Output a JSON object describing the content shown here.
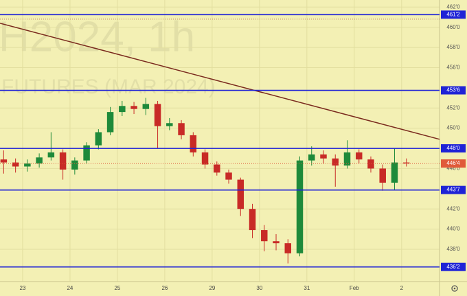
{
  "chart_data": {
    "type": "candlestick",
    "watermark_title": "H2024, 1h",
    "watermark_subtitle": "FUTURES (MAR 2024)",
    "background": "#f3f0b4",
    "up_color": "#1e8a3a",
    "down_color": "#c82a26",
    "ylim": [
      434.8,
      462.7
    ],
    "xlim": [
      -0.478,
      8.8
    ],
    "yticks": [
      {
        "value": 462,
        "label": "462'0"
      },
      {
        "value": 460,
        "label": "460'0"
      },
      {
        "value": 458,
        "label": "458'0"
      },
      {
        "value": 456,
        "label": "456'0"
      },
      {
        "value": 452,
        "label": "452'0"
      },
      {
        "value": 450,
        "label": "450'0"
      },
      {
        "value": 446,
        "label": "446'0"
      },
      {
        "value": 442,
        "label": "442'0"
      },
      {
        "value": 440,
        "label": "440'0"
      },
      {
        "value": 438,
        "label": "438'0"
      }
    ],
    "xticks": [
      {
        "value": 0,
        "label": "23"
      },
      {
        "value": 1,
        "label": "24"
      },
      {
        "value": 2,
        "label": "25"
      },
      {
        "value": 3,
        "label": "26"
      },
      {
        "value": 4,
        "label": "29"
      },
      {
        "value": 5,
        "label": "30"
      },
      {
        "value": 6,
        "label": "31"
      },
      {
        "value": 7,
        "label": "Feb"
      },
      {
        "value": 8,
        "label": "2"
      }
    ],
    "grid": true,
    "x": [
      -0.4,
      -0.15,
      0.1,
      0.35,
      0.6,
      0.85,
      1.1,
      1.35,
      1.6,
      1.85,
      2.1,
      2.35,
      2.6,
      2.85,
      3.1,
      3.35,
      3.6,
      3.85,
      4.1,
      4.35,
      4.6,
      4.85,
      5.1,
      5.35,
      5.6,
      5.85,
      6.1,
      6.35,
      6.6,
      6.85,
      7.1,
      7.35,
      7.6,
      7.85,
      8.1
    ],
    "candles": [
      [
        446.9,
        447.8,
        445.5,
        446.6
      ],
      [
        446.6,
        447.0,
        445.6,
        446.2
      ],
      [
        446.2,
        446.9,
        445.7,
        446.5
      ],
      [
        446.5,
        447.5,
        446.1,
        447.1
      ],
      [
        447.1,
        449.6,
        446.8,
        447.6
      ],
      [
        447.6,
        447.9,
        444.9,
        445.9
      ],
      [
        445.9,
        447.1,
        445.4,
        446.8
      ],
      [
        446.8,
        448.6,
        446.5,
        448.3
      ],
      [
        448.3,
        449.9,
        447.9,
        449.6
      ],
      [
        449.6,
        452.1,
        449.3,
        451.6
      ],
      [
        451.6,
        452.7,
        451.2,
        452.2
      ],
      [
        452.2,
        452.6,
        451.4,
        451.9
      ],
      [
        451.9,
        453.0,
        451.3,
        452.4
      ],
      [
        452.4,
        452.7,
        448.0,
        450.2
      ],
      [
        450.2,
        451.0,
        449.8,
        450.5
      ],
      [
        450.5,
        450.8,
        448.9,
        449.3
      ],
      [
        449.3,
        449.6,
        447.2,
        447.6
      ],
      [
        447.6,
        447.9,
        446.0,
        446.4
      ],
      [
        446.4,
        446.7,
        445.3,
        445.6
      ],
      [
        445.6,
        445.9,
        444.5,
        444.9
      ],
      [
        444.9,
        445.1,
        441.3,
        442.0
      ],
      [
        442.0,
        442.5,
        439.1,
        439.9
      ],
      [
        439.9,
        440.4,
        437.8,
        438.8
      ],
      [
        438.8,
        439.5,
        437.9,
        438.6
      ],
      [
        438.6,
        439.0,
        436.6,
        437.6
      ],
      [
        437.6,
        447.2,
        437.3,
        446.8
      ],
      [
        446.8,
        448.2,
        446.3,
        447.4
      ],
      [
        447.4,
        447.8,
        446.5,
        447.0
      ],
      [
        447.0,
        447.4,
        444.2,
        446.3
      ],
      [
        446.3,
        448.8,
        446.0,
        447.6
      ],
      [
        447.6,
        447.9,
        446.5,
        446.9
      ],
      [
        446.9,
        447.2,
        445.6,
        446.0
      ],
      [
        446.0,
        446.4,
        443.8,
        444.6
      ],
      [
        444.6,
        448.0,
        443.9,
        446.6
      ],
      [
        446.6,
        447.0,
        446.2,
        446.5
      ]
    ],
    "levels": [
      {
        "value": 461.25,
        "label": "461'2"
      },
      {
        "value": 453.75,
        "label": "453'6"
      },
      {
        "value": 448,
        "label": "448'0"
      },
      {
        "value": 443.875,
        "label": "443'7"
      },
      {
        "value": 436.25,
        "label": "436'2"
      }
    ],
    "level_color": "#1f23d6",
    "dotted_levels": [
      460.8
    ],
    "last_price": {
      "value": 446.5,
      "label": "446'4"
    },
    "last_price_color": "#e05a3a",
    "trend_line": [
      [
        -0.478,
        460.4
      ],
      [
        8.8,
        448.9
      ]
    ],
    "trend_color": "#7a2a1e"
  }
}
